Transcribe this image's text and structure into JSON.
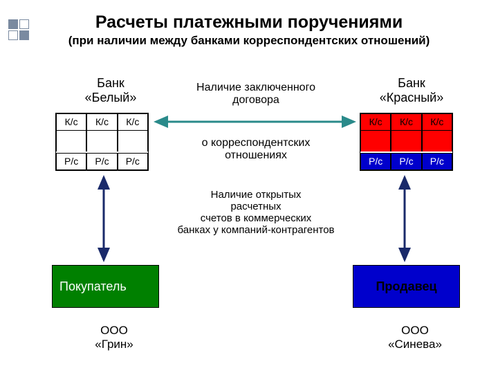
{
  "title": "Расчеты платежными поручениями",
  "subtitle": "(при наличии между банками корреспондентских отношений)",
  "bank_left": "Банк\n«Белый»",
  "bank_right": "Банк\n«Красный»",
  "contract_label": "Наличие заключенного\nдоговора",
  "corr_label": "о корреспондентских\nотношениях",
  "accounts_label": "Наличие открытых\nрасчетных\nсчетов в коммерческих\nбанках у компаний-контрагентов",
  "kc": "К/с",
  "pc": "Р/с",
  "buyer": "Покупатель",
  "seller": "Продавец",
  "comp_left": "ООО\n«Грин»",
  "comp_right": "ООО\n«Синева»",
  "colors": {
    "red": "#ff0000",
    "blue": "#0000cc",
    "green": "#008000",
    "arrow_teal": "#2a8a8a",
    "arrow_navy": "#1a2a6a"
  },
  "decor": [
    true,
    false,
    false,
    true
  ]
}
